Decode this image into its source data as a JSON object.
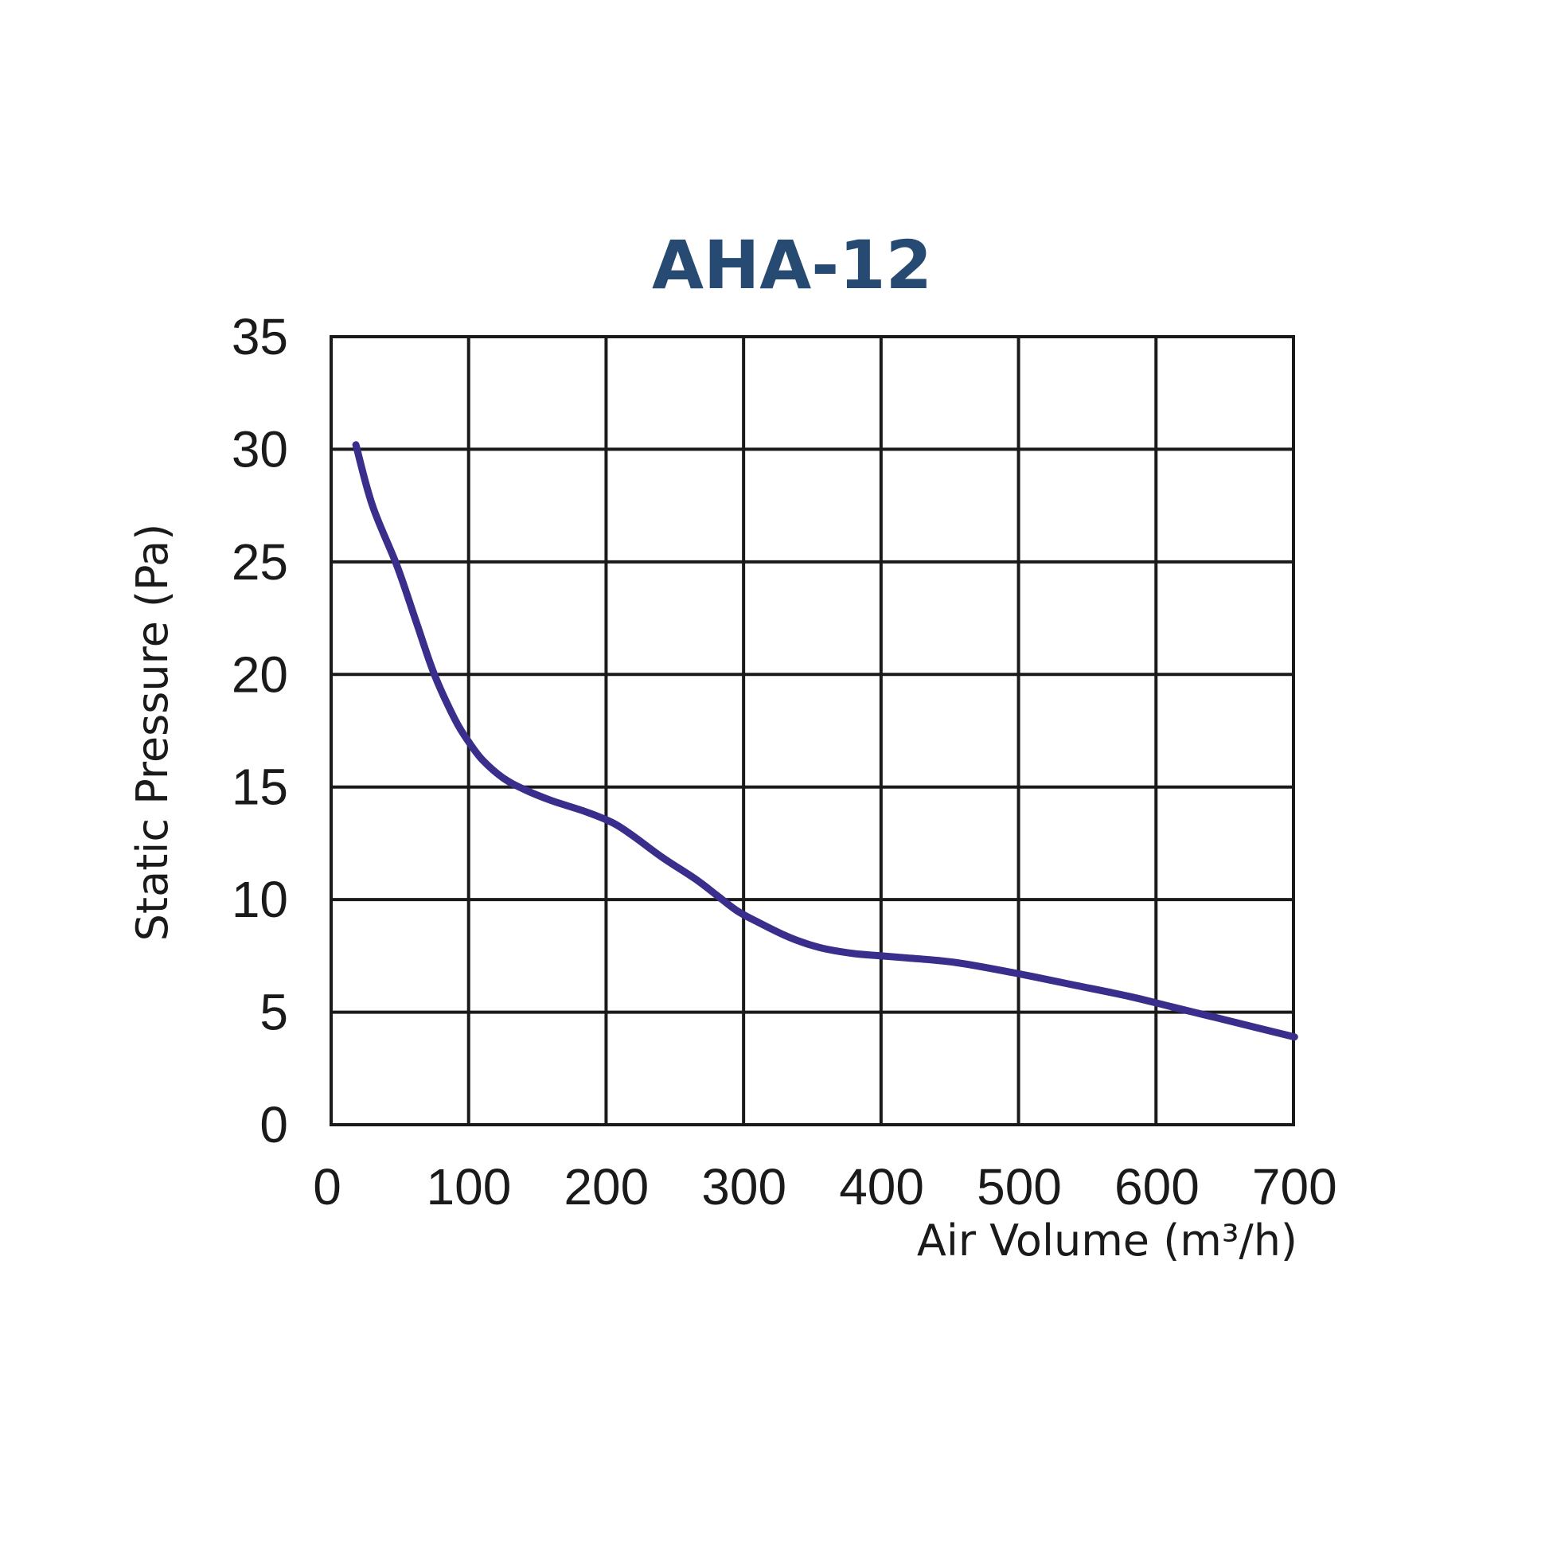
{
  "chart_data": {
    "type": "line",
    "title": "AHA-12",
    "xlabel": "Air Volume (m³/h)",
    "ylabel": "Static Pressure (Pa)",
    "x_ticks": [
      "0",
      "100",
      "200",
      "300",
      "400",
      "500",
      "600",
      "700"
    ],
    "y_ticks": [
      "0",
      "5",
      "10",
      "15",
      "20",
      "25",
      "30",
      "35"
    ],
    "xlim": [
      0,
      700
    ],
    "ylim": [
      0,
      35
    ],
    "grid": true,
    "line_color": "#3a2e8c",
    "title_color": "#264a72",
    "series": [
      {
        "x": [
          18,
          30,
          48,
          62,
          75,
          90,
          100,
          110,
          125,
          140,
          160,
          185,
          205,
          220,
          240,
          265,
          280,
          295,
          310,
          330,
          345,
          360,
          380,
          400,
          420,
          440,
          460,
          500,
          540,
          580,
          610,
          640,
          670,
          700
        ],
        "y": [
          30.2,
          27.5,
          24.8,
          22.3,
          20.0,
          18.0,
          17.0,
          16.2,
          15.4,
          14.9,
          14.4,
          13.9,
          13.4,
          12.8,
          11.9,
          10.9,
          10.2,
          9.5,
          9.0,
          8.4,
          8.05,
          7.8,
          7.6,
          7.5,
          7.4,
          7.3,
          7.15,
          6.7,
          6.2,
          5.7,
          5.25,
          4.8,
          4.35,
          3.9
        ]
      }
    ]
  }
}
